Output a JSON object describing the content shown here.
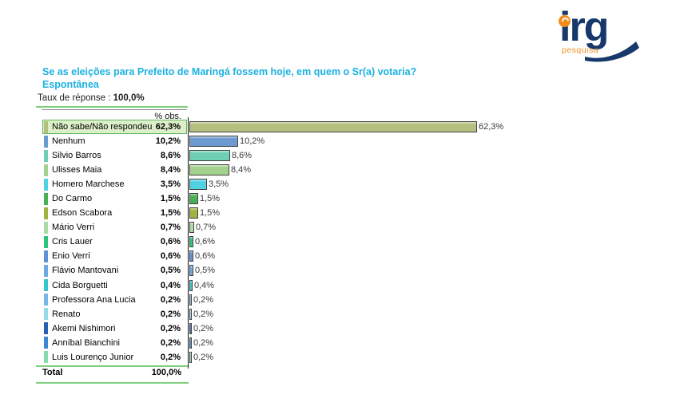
{
  "logo": {
    "text": "irg",
    "subtext": "pesquisa"
  },
  "title": {
    "line1": "Se as eleições para Prefeito de Maringá fossem hoje, em quem o Sr(a) votaria?",
    "line2": "Espontânea"
  },
  "response_rate": {
    "label": "Taux de réponse :",
    "value": "100,0%"
  },
  "table": {
    "header": "% obs.",
    "total_label": "Total",
    "total_value": "100,0%"
  },
  "chart_data": {
    "type": "bar",
    "orientation": "horizontal",
    "unit": "percent",
    "title": "Se as eleições para Prefeito de Maringá fossem hoje, em quem o Sr(a) votaria? Espontânea",
    "xlim": [
      0,
      65
    ],
    "grid": false,
    "legend": false,
    "highlight_index": 0,
    "categories": [
      "Não sabe/Não respondeu",
      "Nenhum",
      "Silvio Barros",
      "Ulisses Maia",
      "Homero Marchese",
      "Do Carmo",
      "Edson Scabora",
      "Mário Verri",
      "Cris Lauer",
      "Enio Verri",
      "Flávio Mantovani",
      "Cida Borguetti",
      "Professora Ana Lucia",
      "Renato",
      "Akemi Nishimori",
      "Anníbal Bianchini",
      "Luis Lourenço Junior"
    ],
    "values": [
      62.3,
      10.2,
      8.6,
      8.4,
      3.5,
      1.5,
      1.5,
      0.7,
      0.6,
      0.6,
      0.5,
      0.4,
      0.2,
      0.2,
      0.2,
      0.2,
      0.2
    ],
    "labels": [
      "62,3%",
      "10,2%",
      "8,6%",
      "8,4%",
      "3,5%",
      "1,5%",
      "1,5%",
      "0,7%",
      "0,6%",
      "0,6%",
      "0,5%",
      "0,4%",
      "0,2%",
      "0,2%",
      "0,2%",
      "0,2%",
      "0,2%"
    ],
    "colors": [
      "#b6c07e",
      "#6b9ad1",
      "#6ecfb5",
      "#a3d28f",
      "#4fd2e2",
      "#46b155",
      "#9fb440",
      "#a9dba3",
      "#2ec47e",
      "#5d92d5",
      "#6ba8e5",
      "#38c5cb",
      "#77b5e8",
      "#92dbe7",
      "#2a60b4",
      "#3c86d3",
      "#82dcae"
    ]
  },
  "colors": {
    "title_cyan": "#1cb1e1",
    "line_green": "#7fcf7f",
    "table_line_gray": "#8a8a8a",
    "logo_navy": "#16386b",
    "logo_orange": "#f08c1e",
    "highlight_bg": "#dcefc8",
    "highlight_border": "#5eb95e",
    "bar_border": "#404040",
    "axis_black": "#151515",
    "label_gray": "#3a3a3a"
  }
}
